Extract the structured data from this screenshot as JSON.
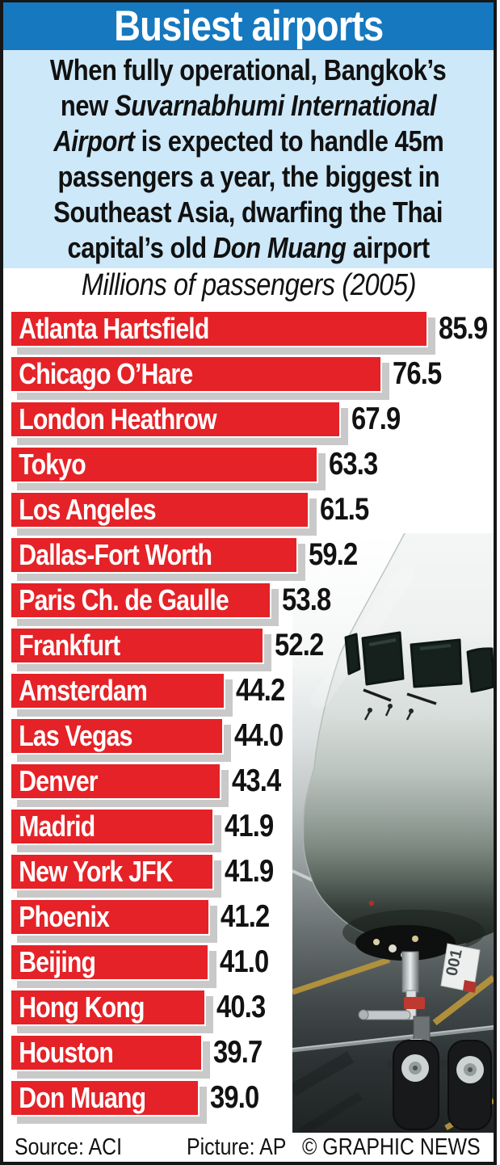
{
  "header": {
    "title": "Busiest airports"
  },
  "intro": {
    "lines": [
      [
        {
          "t": "When fully operational, Bangkok’s"
        }
      ],
      [
        {
          "t": "new "
        },
        {
          "t": "Suvarnabhumi International",
          "i": true
        }
      ],
      [
        {
          "t": "Airport",
          "i": true
        },
        {
          "t": " is expected to handle 45m"
        }
      ],
      [
        {
          "t": "passengers a year, the biggest in"
        }
      ],
      [
        {
          "t": "Southeast Asia, dwarfing the Thai"
        }
      ],
      [
        {
          "t": "capital’s old "
        },
        {
          "t": "Don Muang",
          "i": true
        },
        {
          "t": " airport"
        }
      ]
    ]
  },
  "chart_data": {
    "type": "bar",
    "orientation": "horizontal",
    "title": "Millions of passengers (2005)",
    "categories": [
      "Atlanta Hartsfield",
      "Chicago O’Hare",
      "London Heathrow",
      "Tokyo",
      "Los Angeles",
      "Dallas-Fort Worth",
      "Paris Ch. de Gaulle",
      "Frankfurt",
      "Amsterdam",
      "Las Vegas",
      "Denver",
      "Madrid",
      "New York JFK",
      "Phoenix",
      "Beijing",
      "Hong Kong",
      "Houston",
      "Don Muang"
    ],
    "values": [
      85.9,
      76.5,
      67.9,
      63.3,
      61.5,
      59.2,
      53.8,
      52.2,
      44.2,
      44.0,
      43.4,
      41.9,
      41.9,
      41.2,
      41.0,
      40.3,
      39.7,
      39.0
    ],
    "xlim": [
      0,
      85.9
    ],
    "value_labels_position": "right-of-bar",
    "grid": false,
    "bar_color": "#e52227",
    "bar_label_color": "#ffffff",
    "value_label_color": "#121212",
    "shadow_color": "#c9c9c9"
  },
  "photo": {
    "placard_text": "001"
  },
  "footer": {
    "source": "Source: ACI",
    "picture": "Picture: AP",
    "credit": "© GRAPHIC NEWS"
  },
  "colors": {
    "header_blue": "#1678be",
    "intro_blue": "#cde8f8",
    "bar_red": "#e52227",
    "shadow_gray": "#c9c9c9",
    "border_black": "#161616"
  }
}
